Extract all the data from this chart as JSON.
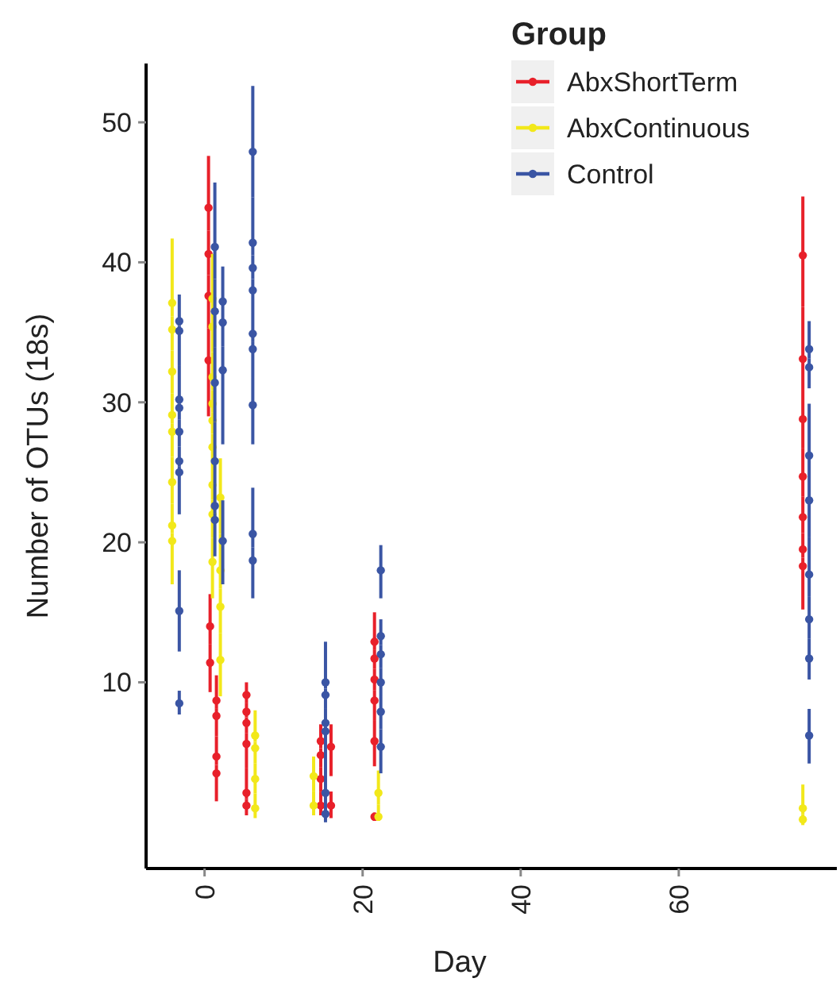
{
  "chart_data": {
    "type": "scatter",
    "xlabel": "Day",
    "ylabel": "Number of OTUs (18s)",
    "legend_title": "Group",
    "legend": "top right",
    "marker": "circle",
    "grid": false,
    "xlim": [
      -7.4,
      80
    ],
    "xticks": [
      0,
      20,
      40,
      60
    ],
    "ylim": [
      -3.3,
      54.2
    ],
    "yticks": [
      10,
      20,
      30,
      40,
      50
    ],
    "series": [
      {
        "name": "AbxShortTerm",
        "color": "#e8202a",
        "x": [
          0.5,
          0.5,
          0.5,
          0.5,
          0.7,
          0.7,
          1.5,
          1.5,
          1.5,
          1.5,
          5.3,
          5.3,
          5.3,
          5.3,
          5.3,
          5.3,
          14.7,
          14.7,
          14.7,
          14.7,
          16,
          16,
          21.5,
          21.5,
          21.5,
          21.5,
          21.5,
          21.5,
          75.7,
          75.7,
          75.7,
          75.7,
          75.7,
          75.7,
          75.7
        ],
        "values": [
          43.9,
          40.6,
          37.6,
          33.0,
          14.0,
          11.4,
          8.7,
          7.6,
          4.7,
          3.5,
          9.1,
          7.9,
          7.1,
          5.6,
          2.1,
          1.2,
          5.8,
          4.8,
          3.1,
          1.2,
          5.4,
          1.2,
          12.9,
          11.7,
          10.2,
          8.7,
          5.8,
          0.4,
          40.5,
          33.1,
          28.8,
          24.7,
          21.8,
          19.5,
          18.3
        ],
        "errors": [
          [
            42.25,
            47.6
          ],
          [
            39.1,
            42.25
          ],
          [
            35.3,
            39.1
          ],
          [
            29,
            35.3
          ],
          [
            12.7,
            16.3
          ],
          [
            9.3,
            12.7
          ],
          [
            8.15,
            10.5
          ],
          [
            6.15,
            8.15
          ],
          [
            4.1,
            6.15
          ],
          [
            1.5,
            4.1
          ],
          [
            8.5,
            10
          ],
          [
            7.5,
            8.5
          ],
          [
            6.35,
            7.5
          ],
          [
            3.85,
            6.35
          ],
          [
            1.65,
            3.85
          ],
          [
            0.5,
            1.65
          ],
          [
            5.3,
            7
          ],
          [
            3.95,
            5.3
          ],
          [
            2.15,
            3.95
          ],
          [
            0.5,
            2.15
          ],
          [
            3.3,
            7
          ],
          [
            0.3,
            2.2
          ],
          [
            12.3,
            15
          ],
          [
            10.95,
            12.3
          ],
          [
            9.45,
            10.95
          ],
          [
            7.25,
            9.45
          ],
          [
            4,
            7.25
          ],
          [
            0.1,
            0.7
          ],
          [
            36.8,
            44.7
          ],
          [
            30.95,
            36.8
          ],
          [
            26.75,
            30.95
          ],
          [
            23.25,
            26.75
          ],
          [
            20.65,
            23.25
          ],
          [
            18.9,
            20.65
          ],
          [
            15.2,
            18.9
          ]
        ]
      },
      {
        "name": "AbxContinuous",
        "color": "#f2e81a",
        "x": [
          -4.1,
          -4.1,
          -4.1,
          -4.1,
          -4.1,
          -4.1,
          -4.1,
          -4.1,
          1,
          1,
          1,
          1,
          1,
          1,
          1,
          1,
          1,
          2,
          2,
          2,
          2,
          6.4,
          6.4,
          6.4,
          6.4,
          13.8,
          13.8,
          22,
          22,
          75.7,
          75.7
        ],
        "values": [
          37.1,
          35.2,
          32.2,
          29.1,
          27.9,
          24.3,
          21.2,
          20.1,
          37.4,
          35.4,
          31.8,
          29.9,
          28.7,
          26.8,
          24.1,
          22,
          18.6,
          23.2,
          18,
          15.4,
          11.6,
          6.2,
          5.3,
          3.1,
          1.0,
          3.3,
          1.2,
          2.1,
          0.4,
          1.0,
          0.2
        ],
        "errors": [
          [
            36.15,
            41.7
          ],
          [
            33.7,
            36.15
          ],
          [
            30.65,
            33.7
          ],
          [
            28.5,
            30.65
          ],
          [
            26.1,
            28.5
          ],
          [
            22.75,
            26.1
          ],
          [
            20.65,
            22.75
          ],
          [
            17,
            20.65
          ],
          [
            36.4,
            40.6
          ],
          [
            33.6,
            36.4
          ],
          [
            30.85,
            33.6
          ],
          [
            29.3,
            30.85
          ],
          [
            27.75,
            29.3
          ],
          [
            25.45,
            27.75
          ],
          [
            23.05,
            25.45
          ],
          [
            20.3,
            23.05
          ],
          [
            16,
            20.3
          ],
          [
            20.6,
            26
          ],
          [
            16.7,
            20.6
          ],
          [
            13.5,
            16.7
          ],
          [
            9,
            13.5
          ],
          [
            5.75,
            8
          ],
          [
            4.2,
            5.75
          ],
          [
            2.05,
            4.2
          ],
          [
            0.3,
            2.05
          ],
          [
            2.25,
            4.7
          ],
          [
            0.5,
            2.25
          ],
          [
            1.25,
            3.7
          ],
          [
            0.1,
            1.25
          ],
          [
            0.6,
            2.7
          ],
          [
            -0.2,
            0.6
          ]
        ]
      },
      {
        "name": "Control",
        "color": "#3a55a4",
        "x": [
          -3.2,
          -3.2,
          -3.2,
          -3.2,
          -3.2,
          -3.2,
          -3.2,
          -3.2,
          -3.2,
          1.3,
          1.3,
          1.3,
          1.3,
          1.3,
          1.3,
          2.3,
          2.3,
          2.3,
          2.3,
          6.1,
          6.1,
          6.1,
          6.1,
          6.1,
          6.1,
          6.1,
          6.1,
          6.1,
          15.3,
          15.3,
          15.3,
          15.3,
          15.3,
          15.3,
          22.3,
          22.3,
          22.3,
          22.3,
          22.3,
          22.3,
          76.5,
          76.5,
          76.5,
          76.5,
          76.5,
          76.5,
          76.5,
          76.5
        ],
        "values": [
          35.8,
          35.1,
          30.2,
          29.6,
          27.9,
          25.8,
          25.0,
          15.1,
          8.5,
          41.1,
          36.5,
          31.4,
          25.8,
          22.6,
          21.6,
          37.2,
          35.7,
          32.3,
          20.1,
          47.9,
          41.4,
          39.6,
          38.0,
          34.9,
          33.8,
          29.8,
          20.6,
          18.7,
          10.0,
          9.1,
          7.1,
          6.5,
          2.1,
          0.6,
          18.0,
          13.3,
          12.0,
          10.0,
          7.9,
          5.4,
          33.8,
          32.5,
          26.2,
          23.0,
          17.7,
          14.5,
          11.7,
          6.2
        ],
        "errors": [
          [
            35.45,
            37.7
          ],
          [
            32.65,
            35.45
          ],
          [
            29.9,
            32.65
          ],
          [
            28.75,
            29.9
          ],
          [
            26.85,
            28.75
          ],
          [
            25.4,
            26.85
          ],
          [
            22,
            25.4
          ],
          [
            12.2,
            18
          ],
          [
            7.7,
            9.4
          ],
          [
            38.8,
            45.7
          ],
          [
            33.95,
            38.8
          ],
          [
            28.6,
            33.95
          ],
          [
            24.2,
            28.6
          ],
          [
            22.1,
            24.2
          ],
          [
            19,
            22.1
          ],
          [
            36.45,
            39.7
          ],
          [
            34,
            36.45
          ],
          [
            27,
            34
          ],
          [
            17,
            23
          ],
          [
            44.65,
            52.6
          ],
          [
            40.5,
            44.65
          ],
          [
            38.8,
            40.5
          ],
          [
            36.45,
            38.8
          ],
          [
            34.35,
            36.45
          ],
          [
            31.8,
            34.35
          ],
          [
            27,
            31.8
          ],
          [
            19.65,
            23.9
          ],
          [
            16,
            19.65
          ],
          [
            9.55,
            12.9
          ],
          [
            8.1,
            9.55
          ],
          [
            6.8,
            8.1
          ],
          [
            4.3,
            6.8
          ],
          [
            1.35,
            4.3
          ],
          [
            0,
            1.35
          ],
          [
            16,
            19.8
          ],
          [
            12.65,
            14.5
          ],
          [
            11,
            12.65
          ],
          [
            8.95,
            11
          ],
          [
            6.65,
            8.95
          ],
          [
            3.5,
            6.65
          ],
          [
            33.15,
            35.8
          ],
          [
            31,
            33.15
          ],
          [
            24.6,
            29.9
          ],
          [
            20.35,
            24.6
          ],
          [
            16.1,
            20.35
          ],
          [
            13.1,
            16.1
          ],
          [
            10.2,
            13.1
          ],
          [
            4.2,
            8.1
          ]
        ]
      }
    ]
  }
}
